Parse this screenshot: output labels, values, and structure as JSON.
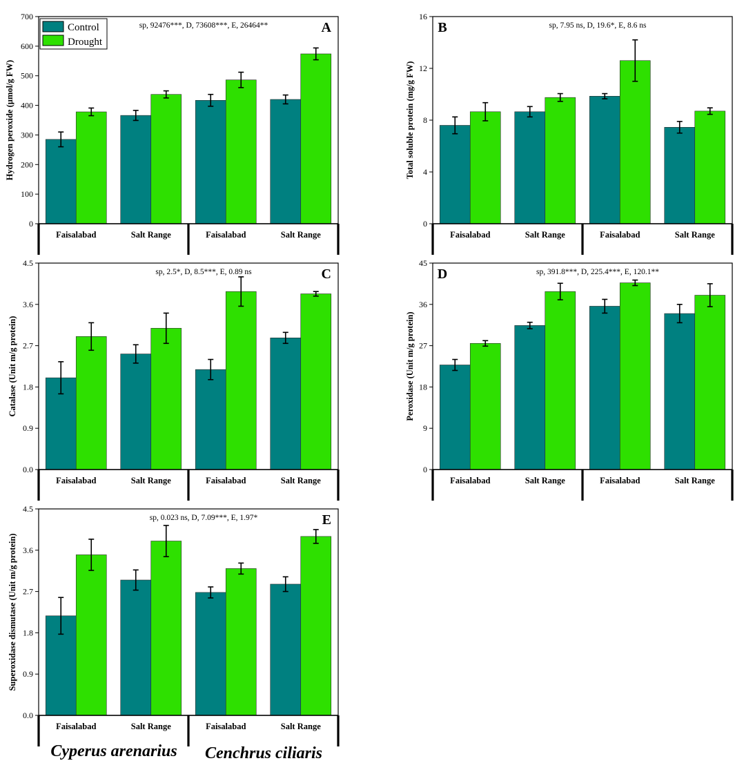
{
  "colors": {
    "control": "#008080",
    "drought": "#2EE000",
    "axis": "#000000"
  },
  "legend": {
    "labels": [
      "Control",
      "Drought"
    ]
  },
  "species": [
    "Cyperus arenarius",
    "Cenchrus ciliaris"
  ],
  "chart_data": [
    {
      "id": "A",
      "panel_letter": "A",
      "type": "bar",
      "ylabel": "Hydrogen peroxide (µmol/g FW)",
      "stats": "sp, 92476***, D, 73608***, E, 26464**",
      "ylim": [
        0,
        700
      ],
      "yticks": [
        "0",
        "100",
        "200",
        "300",
        "400",
        "500",
        "600",
        "700"
      ],
      "categories": [
        "Faisalabad",
        "Salt Range",
        "Faisalabad",
        "Salt Range"
      ],
      "series": [
        {
          "name": "Control",
          "values": [
            285,
            366,
            417,
            420
          ],
          "errors": [
            25,
            17,
            20,
            15
          ]
        },
        {
          "name": "Drought",
          "values": [
            378,
            437,
            486,
            574
          ],
          "errors": [
            13,
            12,
            26,
            20
          ]
        }
      ]
    },
    {
      "id": "B",
      "panel_letter": "B",
      "type": "bar",
      "ylabel": "Total soluble protein (mg/g FW)",
      "stats": "sp, 7.95 ns, D, 19.6*, E, 8.6 ns",
      "ylim": [
        0,
        16
      ],
      "yticks": [
        "0",
        "4",
        "8",
        "12",
        "16"
      ],
      "categories": [
        "Faisalabad",
        "Salt Range",
        "Faisalabad",
        "Salt Range"
      ],
      "series": [
        {
          "name": "Control",
          "values": [
            7.6,
            8.65,
            9.85,
            7.45
          ],
          "errors": [
            0.65,
            0.4,
            0.2,
            0.45
          ]
        },
        {
          "name": "Drought",
          "values": [
            8.65,
            9.75,
            12.6,
            8.7
          ],
          "errors": [
            0.7,
            0.3,
            1.6,
            0.25
          ]
        }
      ]
    },
    {
      "id": "C",
      "panel_letter": "C",
      "type": "bar",
      "ylabel": "Catalase (Unit m/g protein)",
      "stats": "sp, 2.5*, D, 8.5***, E, 0.89 ns",
      "ylim": [
        0,
        4.5
      ],
      "yticks": [
        "0.0",
        "0.9",
        "1.8",
        "2.7",
        "3.6",
        "4.5"
      ],
      "categories": [
        "Faisalabad",
        "Salt Range",
        "Faisalabad",
        "Salt Range"
      ],
      "series": [
        {
          "name": "Control",
          "values": [
            2.0,
            2.52,
            2.18,
            2.87
          ],
          "errors": [
            0.35,
            0.2,
            0.22,
            0.12
          ]
        },
        {
          "name": "Drought",
          "values": [
            2.9,
            3.08,
            3.88,
            3.83
          ],
          "errors": [
            0.3,
            0.33,
            0.32,
            0.05
          ]
        }
      ]
    },
    {
      "id": "D",
      "panel_letter": "D",
      "type": "bar",
      "ylabel": "Peroxidase (Unit m/g protein)",
      "stats": "sp, 391.8***, D, 225.4***, E, 120.1**",
      "ylim": [
        0,
        45
      ],
      "yticks": [
        "0",
        "9",
        "18",
        "27",
        "36",
        "45"
      ],
      "categories": [
        "Faisalabad",
        "Salt Range",
        "Faisalabad",
        "Salt Range"
      ],
      "series": [
        {
          "name": "Control",
          "values": [
            22.8,
            31.4,
            35.6,
            34.0
          ],
          "errors": [
            1.2,
            0.7,
            1.5,
            2.0
          ]
        },
        {
          "name": "Drought",
          "values": [
            27.5,
            38.8,
            40.7,
            38.0
          ],
          "errors": [
            0.6,
            1.8,
            0.6,
            2.5
          ]
        }
      ]
    },
    {
      "id": "E",
      "panel_letter": "E",
      "type": "bar",
      "ylabel": "Superoxidase dismutase (Unit m/g protein)",
      "stats": "sp, 0.023 ns, D, 7.09***, E, 1.97*",
      "ylim": [
        0,
        4.5
      ],
      "yticks": [
        "0.0",
        "0.9",
        "1.8",
        "2.7",
        "3.6",
        "4.5"
      ],
      "categories": [
        "Faisalabad",
        "Salt Range",
        "Faisalabad",
        "Salt Range"
      ],
      "series": [
        {
          "name": "Control",
          "values": [
            2.17,
            2.95,
            2.68,
            2.86
          ],
          "errors": [
            0.4,
            0.22,
            0.12,
            0.16
          ]
        },
        {
          "name": "Drought",
          "values": [
            3.5,
            3.8,
            3.2,
            3.9
          ],
          "errors": [
            0.34,
            0.34,
            0.12,
            0.15
          ]
        }
      ]
    }
  ]
}
